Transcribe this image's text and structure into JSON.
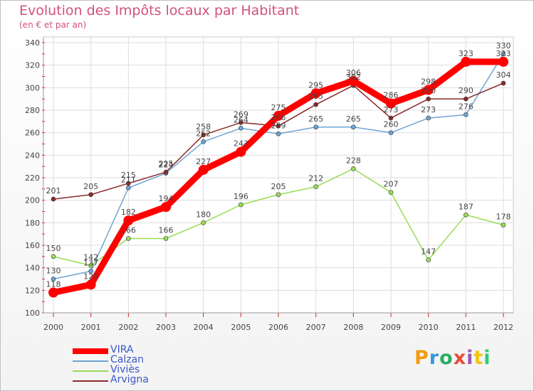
{
  "title": "Evolution des Impôts locaux par Habitant",
  "subtitle": "(en € et par an)",
  "logo": {
    "text": "Proxiti",
    "letter_colors": [
      "#f39c12",
      "#3498db",
      "#27ae60",
      "#e74c3c",
      "#9b59b6",
      "#f1c40f",
      "#2ecc71"
    ]
  },
  "chart_data": {
    "type": "line",
    "title": "Evolution des Impôts locaux par Habitant",
    "subtitle": "(en € et par an)",
    "xlabel": "",
    "ylabel": "",
    "ylim": [
      100,
      340
    ],
    "yticks": [
      100,
      120,
      140,
      160,
      180,
      200,
      220,
      240,
      260,
      280,
      300,
      320,
      340
    ],
    "grid": true,
    "legend_position": "bottom-left",
    "categories": [
      "2000",
      "2001",
      "2002",
      "2003",
      "2004",
      "2005",
      "2006",
      "2007",
      "2008",
      "2009",
      "2010",
      "2011",
      "2012"
    ],
    "series": [
      {
        "name": "VIRA",
        "color": "#ff0000",
        "values": [
          118,
          125,
          182,
          194,
          227,
          243,
          275,
          295,
          306,
          286,
          298,
          323,
          323
        ],
        "labels": [
          "118",
          "125",
          "182",
          "194",
          "227",
          "243",
          "275",
          "295",
          "306",
          "286",
          "298",
          "323",
          "323"
        ]
      },
      {
        "name": "Calzan",
        "color": "#6ea4d4",
        "values": [
          130,
          137,
          211,
          224,
          252,
          264,
          259,
          265,
          265,
          260,
          273,
          276,
          330
        ],
        "labels": [
          "130",
          "137",
          "211",
          "224",
          "252",
          "264",
          "259",
          "265",
          "265",
          "260",
          "273",
          "276",
          "330"
        ]
      },
      {
        "name": "Viviès",
        "color": "#99dd55",
        "values": [
          150,
          142,
          166,
          166,
          180,
          196,
          205,
          212,
          228,
          207,
          147,
          187,
          178
        ],
        "labels": [
          "150",
          "142",
          "166",
          "166",
          "180",
          "196",
          "205",
          "212",
          "228",
          "207",
          "147",
          "187",
          "178"
        ]
      },
      {
        "name": "Arvigna",
        "color": "#8b2a2a",
        "values": [
          201,
          205,
          215,
          225,
          258,
          269,
          266,
          285,
          302,
          273,
          290,
          290,
          304
        ],
        "labels": [
          "201",
          "205",
          "215",
          "225",
          "258",
          "269",
          "266",
          "285",
          "302",
          "273",
          "290",
          "290",
          "304"
        ]
      }
    ]
  }
}
